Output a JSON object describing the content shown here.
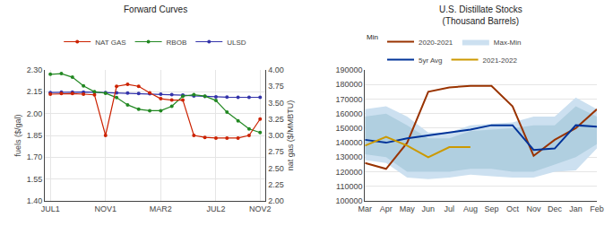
{
  "chart_data": [
    {
      "type": "line",
      "title": "Forward Curves",
      "categories": [
        "JUL1",
        null,
        null,
        null,
        null,
        "NOV1",
        null,
        null,
        null,
        null,
        "MAR2",
        null,
        null,
        null,
        null,
        "JUL2",
        null,
        null,
        null,
        "NOV2"
      ],
      "ylabel": "fuels ($/gal)",
      "y2label": "nat gas ($/MMBTU)",
      "ylim": [
        1.4,
        2.3
      ],
      "yticks": [
        {
          "value": 1.4,
          "label": "1.40"
        },
        {
          "value": 1.55,
          "label": "1.55"
        },
        {
          "value": 1.7,
          "label": "1.70"
        },
        {
          "value": 1.85,
          "label": "1.85"
        },
        {
          "value": 2.0,
          "label": "2.00"
        },
        {
          "value": 2.15,
          "label": "2.15"
        },
        {
          "value": 2.3,
          "label": "2.30"
        }
      ],
      "y2lim": [
        2.0,
        4.0
      ],
      "y2ticks": [
        {
          "value": 2.0,
          "label": "2.00"
        },
        {
          "value": 2.25,
          "label": "2.25"
        },
        {
          "value": 2.5,
          "label": "2.50"
        },
        {
          "value": 2.75,
          "label": "2.75"
        },
        {
          "value": 3.0,
          "label": "3.00"
        },
        {
          "value": 3.25,
          "label": "3.25"
        },
        {
          "value": 3.5,
          "label": "3.50"
        },
        {
          "value": 3.75,
          "label": "3.75"
        },
        {
          "value": 4.0,
          "label": "4.00"
        }
      ],
      "grid": true,
      "legend": "top",
      "series": [
        {
          "name": "ULSD",
          "color": "#3333aa",
          "marker": "circle",
          "values": [
            2.145,
            2.147,
            2.148,
            2.148,
            2.147,
            2.145,
            2.143,
            2.141,
            2.138,
            2.136,
            2.133,
            2.13,
            2.127,
            2.122,
            2.118,
            2.115,
            2.113,
            2.112,
            2.112,
            2.112
          ]
        },
        {
          "name": "RBOB",
          "color": "#228822",
          "marker": "circle",
          "values": [
            2.27,
            2.275,
            2.25,
            2.19,
            2.15,
            2.14,
            2.11,
            2.06,
            2.03,
            2.02,
            2.02,
            2.05,
            2.12,
            2.13,
            2.12,
            2.09,
            2.01,
            1.95,
            1.895,
            1.87
          ]
        },
        {
          "name": "NAT GAS",
          "color": "#cc2200",
          "marker": "circle",
          "axis": "y2",
          "values": [
            3.63,
            3.64,
            3.64,
            3.63,
            3.62,
            3.0,
            3.75,
            3.78,
            3.75,
            3.65,
            3.56,
            3.54,
            3.54,
            3.0,
            2.97,
            2.96,
            2.96,
            2.96,
            3.0,
            3.25
          ]
        }
      ]
    },
    {
      "type": "line",
      "title": "U.S. Distillate Stocks\n(Thousand Barrels)",
      "categories": [
        "Mar",
        "Apr",
        "May",
        "Jun",
        "Jul",
        "Aug",
        "Sep",
        "Oct",
        "Nov",
        "Dec",
        "Jan",
        "Feb"
      ],
      "ylim": [
        100000,
        190000
      ],
      "yticks": [
        100000,
        110000,
        120000,
        130000,
        140000,
        150000,
        160000,
        170000,
        180000,
        190000
      ],
      "grid": "y",
      "legend": "top left",
      "annotations": [
        "Min"
      ],
      "series": [
        {
          "name": "Max-Min",
          "type": "band",
          "color": "#cce0f0",
          "lower": [
            128000,
            126000,
            116000,
            115000,
            116000,
            118000,
            117000,
            116000,
            116000,
            120000,
            121000,
            136000
          ],
          "upper": [
            163000,
            165000,
            158000,
            147000,
            147000,
            152000,
            153000,
            154000,
            158000,
            158000,
            171000,
            163000
          ]
        },
        {
          "type": "band",
          "color": "#b0cfe0",
          "lower": [
            132000,
            130000,
            120000,
            120000,
            120000,
            122000,
            122000,
            120000,
            120000,
            125000,
            130000,
            139000
          ],
          "upper": [
            158000,
            160000,
            152000,
            143000,
            143000,
            148000,
            149000,
            150000,
            152000,
            152000,
            165000,
            158000
          ]
        },
        {
          "name": "2020-2021",
          "color": "#993300",
          "values": [
            126000,
            122000,
            140000,
            175000,
            178000,
            179000,
            179000,
            165000,
            131000,
            142000,
            150000,
            163000
          ]
        },
        {
          "name": "5yr Avg",
          "color": "#003399",
          "values": [
            142000,
            140000,
            143000,
            145000,
            147000,
            149000,
            152000,
            152000,
            135000,
            136000,
            152000,
            151000
          ]
        },
        {
          "name": "2021-2022",
          "color": "#cc9900",
          "values": [
            138000,
            144000,
            138000,
            130000,
            137000,
            137000,
            null,
            null,
            null,
            null,
            null,
            null
          ]
        }
      ]
    }
  ]
}
